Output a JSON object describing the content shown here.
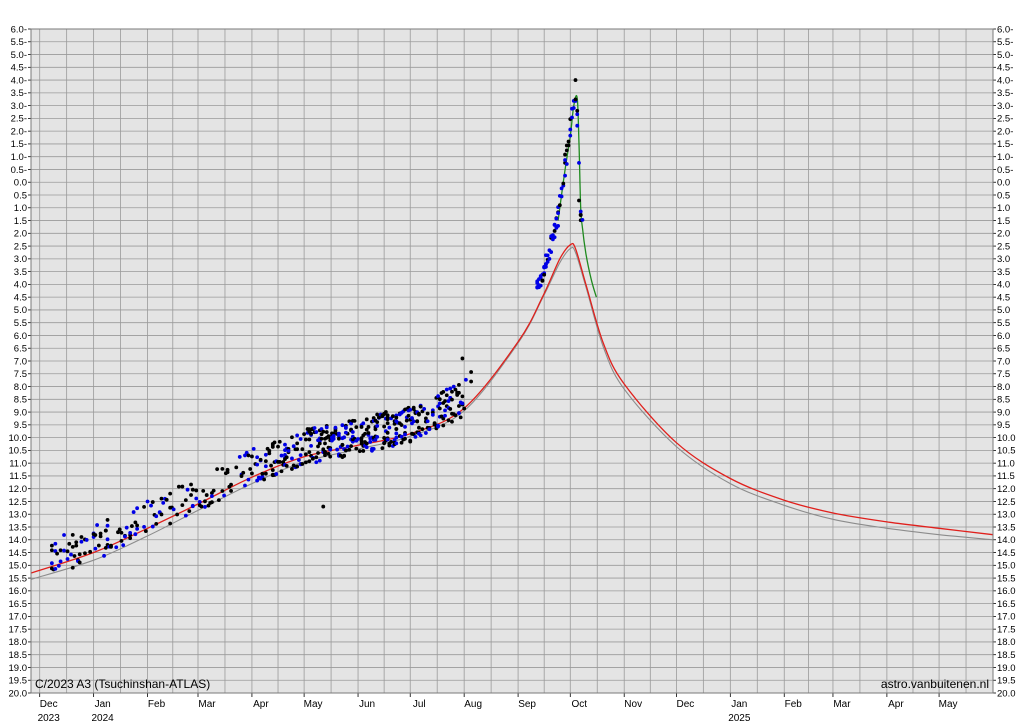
{
  "chart_data": {
    "type": "scatter",
    "title": "",
    "xlabel": "",
    "ylabel": "",
    "annotations": {
      "object": "C/2023 A3 (Tsuchinshan-ATLAS)",
      "credit": "astro.vanbuitenen.nl"
    },
    "x_axis": {
      "unit": "date",
      "range": [
        "2023-11-26",
        "2025-06-01"
      ],
      "month_ticks": [
        {
          "label": "Dec",
          "date": "2023-12-01",
          "year": "2023"
        },
        {
          "label": "Jan",
          "date": "2024-01-01",
          "year": "2024"
        },
        {
          "label": "Feb",
          "date": "2024-02-01",
          "year": ""
        },
        {
          "label": "Mar",
          "date": "2024-03-01",
          "year": ""
        },
        {
          "label": "Apr",
          "date": "2024-04-01",
          "year": ""
        },
        {
          "label": "May",
          "date": "2024-05-01",
          "year": ""
        },
        {
          "label": "Jun",
          "date": "2024-06-01",
          "year": ""
        },
        {
          "label": "Jul",
          "date": "2024-07-01",
          "year": ""
        },
        {
          "label": "Aug",
          "date": "2024-08-01",
          "year": ""
        },
        {
          "label": "Sep",
          "date": "2024-09-01",
          "year": ""
        },
        {
          "label": "Oct",
          "date": "2024-10-01",
          "year": ""
        },
        {
          "label": "Nov",
          "date": "2024-11-01",
          "year": ""
        },
        {
          "label": "Dec",
          "date": "2024-12-01",
          "year": ""
        },
        {
          "label": "Jan",
          "date": "2025-01-01",
          "year": "2025"
        },
        {
          "label": "Feb",
          "date": "2025-02-01",
          "year": ""
        },
        {
          "label": "Mar",
          "date": "2025-03-01",
          "year": ""
        },
        {
          "label": "Apr",
          "date": "2025-04-01",
          "year": ""
        },
        {
          "label": "May",
          "date": "2025-05-01",
          "year": ""
        }
      ]
    },
    "y_axis": {
      "unit": "magnitude",
      "range": [
        -6.0,
        20.0
      ],
      "inverted": true,
      "step": 0.5,
      "tick_labels": [
        "6.0-",
        "5.5-",
        "5.0-",
        "4.5-",
        "4.0-",
        "3.5-",
        "3.0-",
        "2.5-",
        "2.0-",
        "1.5-",
        "1.0-",
        "0.5-",
        "0.0",
        "0.5",
        "1.0",
        "1.5",
        "2.0",
        "2.5",
        "3.0",
        "3.5",
        "4.0",
        "4.5",
        "5.0",
        "5.5",
        "6.0",
        "6.5",
        "7.0",
        "7.5",
        "8.0",
        "8.5",
        "9.0",
        "9.5",
        "10.0",
        "10.5",
        "11.0",
        "11.5",
        "12.0",
        "12.5",
        "13.0",
        "13.5",
        "14.0",
        "14.5",
        "15.0",
        "15.5",
        "16.0",
        "16.5",
        "17.0",
        "17.5",
        "18.0",
        "18.5",
        "19.0",
        "19.5",
        "20.0"
      ]
    },
    "grid": true,
    "legend": "none",
    "colors": {
      "background": "#e4e4e4",
      "grid": "#9a9a9a",
      "red_curve": "#e0201c",
      "gray_curve": "#8c8c8c",
      "green_curve": "#1f8a1f",
      "black_points": "#000000",
      "blue_points": "#0000e6"
    },
    "curves": [
      {
        "color": "red",
        "points": [
          [
            "2023-11-26",
            15.3
          ],
          [
            "2024-01-01",
            14.5
          ],
          [
            "2024-02-01",
            13.55
          ],
          [
            "2024-03-01",
            12.6
          ],
          [
            "2024-04-01",
            11.55
          ],
          [
            "2024-05-01",
            10.75
          ],
          [
            "2024-06-01",
            10.3
          ],
          [
            "2024-07-01",
            9.85
          ],
          [
            "2024-08-01",
            8.85
          ],
          [
            "2024-09-01",
            6.25
          ],
          [
            "2024-09-15",
            4.5
          ],
          [
            "2024-09-25",
            3.0
          ],
          [
            "2024-10-01",
            2.45
          ],
          [
            "2024-10-04",
            2.6
          ],
          [
            "2024-10-10",
            4.0
          ],
          [
            "2024-10-20",
            6.3
          ],
          [
            "2024-11-01",
            7.9
          ],
          [
            "2024-12-01",
            10.2
          ],
          [
            "2025-01-01",
            11.6
          ],
          [
            "2025-02-01",
            12.45
          ],
          [
            "2025-03-01",
            12.95
          ],
          [
            "2025-04-01",
            13.3
          ],
          [
            "2025-05-01",
            13.55
          ],
          [
            "2025-06-01",
            13.8
          ]
        ]
      },
      {
        "color": "gray",
        "points": [
          [
            "2023-11-26",
            15.55
          ],
          [
            "2024-01-01",
            14.8
          ],
          [
            "2024-02-01",
            13.85
          ],
          [
            "2024-03-01",
            12.85
          ],
          [
            "2024-04-01",
            11.8
          ],
          [
            "2024-05-01",
            10.95
          ],
          [
            "2024-06-01",
            10.45
          ],
          [
            "2024-07-01",
            9.95
          ],
          [
            "2024-08-01",
            8.95
          ],
          [
            "2024-09-01",
            6.3
          ],
          [
            "2024-09-15",
            4.55
          ],
          [
            "2024-09-25",
            3.15
          ],
          [
            "2024-10-01",
            2.6
          ],
          [
            "2024-10-04",
            2.75
          ],
          [
            "2024-10-10",
            4.1
          ],
          [
            "2024-10-20",
            6.45
          ],
          [
            "2024-11-01",
            8.1
          ],
          [
            "2024-12-01",
            10.35
          ],
          [
            "2025-01-01",
            11.8
          ],
          [
            "2025-02-01",
            12.65
          ],
          [
            "2025-03-01",
            13.2
          ],
          [
            "2025-04-01",
            13.55
          ],
          [
            "2025-05-01",
            13.8
          ],
          [
            "2025-06-01",
            14.0
          ]
        ]
      },
      {
        "color": "green",
        "points": [
          [
            "2024-09-24",
            1.5
          ],
          [
            "2024-09-28",
            -0.5
          ],
          [
            "2024-10-01",
            -1.8
          ],
          [
            "2024-10-03",
            -3.0
          ],
          [
            "2024-10-05",
            -3.3
          ],
          [
            "2024-10-06",
            -1.5
          ],
          [
            "2024-10-07",
            1.0
          ],
          [
            "2024-10-08",
            1.8
          ],
          [
            "2024-10-10",
            2.8
          ],
          [
            "2024-10-13",
            3.8
          ],
          [
            "2024-10-16",
            4.5
          ]
        ]
      }
    ]
  }
}
